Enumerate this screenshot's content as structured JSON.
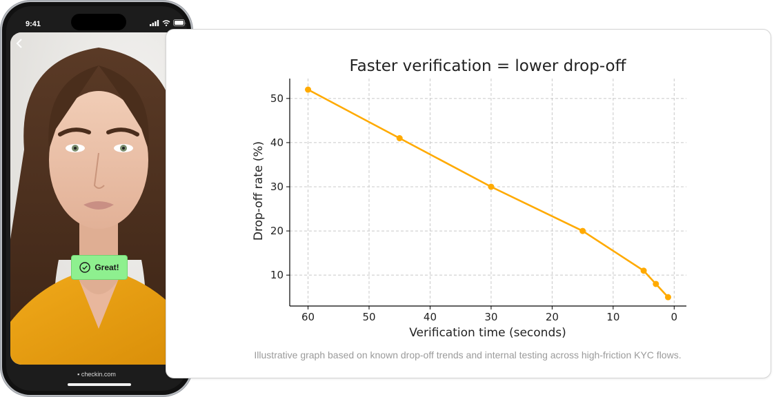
{
  "phone": {
    "status_time": "9:41",
    "badge_label": "Great!",
    "url": "checkin.com",
    "icons": [
      "back-chevron-icon",
      "signal-icon",
      "wifi-icon",
      "battery-icon",
      "lock-icon",
      "check-circle-icon"
    ]
  },
  "chart_data": {
    "type": "line",
    "title": "Faster verification = lower drop-off",
    "xlabel": "Verification time (seconds)",
    "ylabel": "Drop-off rate (%)",
    "x": [
      60,
      45,
      30,
      15,
      5,
      3,
      1
    ],
    "y": [
      52,
      41,
      30,
      20,
      11,
      8,
      5
    ],
    "xlim": [
      63,
      -2
    ],
    "ylim": [
      3,
      54.5
    ],
    "xticks": [
      60,
      50,
      40,
      30,
      20,
      10,
      0
    ],
    "yticks": [
      10,
      20,
      30,
      40,
      50
    ],
    "grid": true,
    "color": "#ffaa00"
  },
  "caption": "Illustrative graph based on known drop-off trends and internal testing across high-friction KYC flows."
}
